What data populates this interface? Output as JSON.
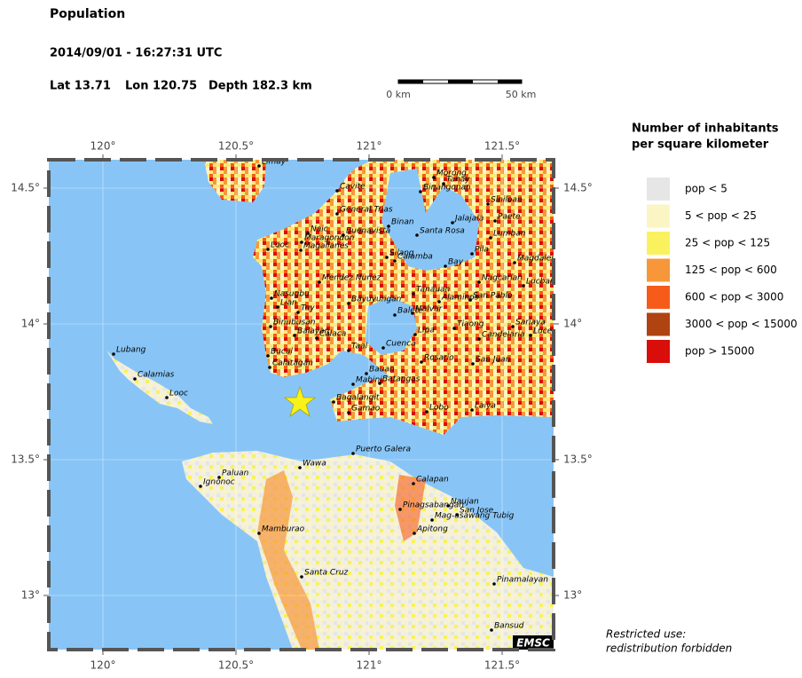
{
  "header": {
    "title": "Population",
    "datetime": "2014/09/01 - 16:27:31 UTC",
    "lat": "Lat 13.71",
    "lon": "Lon 120.75",
    "depth": "Depth 182.3 km"
  },
  "scale_bar": {
    "start": "0 km",
    "end": "50 km"
  },
  "map": {
    "lon_ticks": [
      {
        "value": 120,
        "label": "120°"
      },
      {
        "value": 120.5,
        "label": "120.5°"
      },
      {
        "value": 121,
        "label": "121°"
      },
      {
        "value": 121.5,
        "label": "121.5°"
      }
    ],
    "lat_ticks": [
      {
        "value": 14.5,
        "label": "14.5°"
      },
      {
        "value": 14,
        "label": "14°"
      },
      {
        "value": 13.5,
        "label": "13.5°"
      },
      {
        "value": 13,
        "label": "13°"
      }
    ],
    "cities": [
      "Limay",
      "Cavite",
      "General Trias",
      "Naic",
      "Maragondon",
      "Buenavista",
      "Binan",
      "Santa Rosa",
      "Morong",
      "Tanay",
      "Binangonan",
      "Siniloan",
      "Jalajala",
      "Paete",
      "Lumban",
      "Looc",
      "Magallanes",
      "Silang",
      "Calamba",
      "Bay",
      "Pila",
      "Magdalena",
      "Mendez Nunez",
      "Nagcarlan",
      "Lucban",
      "Tanauan",
      "Alaminos",
      "San Pablo",
      "Nasugbu",
      "Lian",
      "Tuy",
      "Bayuyungan",
      "Balete",
      "Malvar",
      "Binubusan",
      "Balayan",
      "Calaca",
      "Lipa",
      "Tiaong",
      "Sariaya",
      "Candelaria",
      "Lucena",
      "Cuenca",
      "Taal",
      "Bucal",
      "Calatagan",
      "Rosario",
      "San Juan",
      "Bauan",
      "Mabini",
      "Batangas",
      "Bagalangit",
      "Gamao",
      "Lobo",
      "Laiya",
      "Lubang",
      "Calamias",
      "Looc",
      "Puerto Galera",
      "Wawa",
      "Paluan",
      "Ignonoc",
      "Calapan",
      "Naujan",
      "San Jose",
      "Pinagsabangan",
      "Mag-asawang Tubig",
      "Apitong",
      "Mamburao",
      "Santa Cruz",
      "Pinamalayan",
      "Bansud"
    ],
    "badge": "EMSC"
  },
  "legend": {
    "title_line1": "Number of inhabitants",
    "title_line2": "per square kilometer",
    "entries": [
      {
        "label": "pop < 5",
        "color": "#e6e6e6"
      },
      {
        "label": "5 < pop < 25",
        "color": "#fbf5c4"
      },
      {
        "label": "25 < pop < 125",
        "color": "#f9f25e"
      },
      {
        "label": "125 < pop < 600",
        "color": "#f7973a"
      },
      {
        "label": "600 < pop < 3000",
        "color": "#f65b1a"
      },
      {
        "label": "3000 < pop < 15000",
        "color": "#b04312"
      },
      {
        "label": "pop > 15000",
        "color": "#d90e0b"
      }
    ]
  },
  "footer": {
    "line1": "Restricted use:",
    "line2": "redistribution forbidden"
  }
}
